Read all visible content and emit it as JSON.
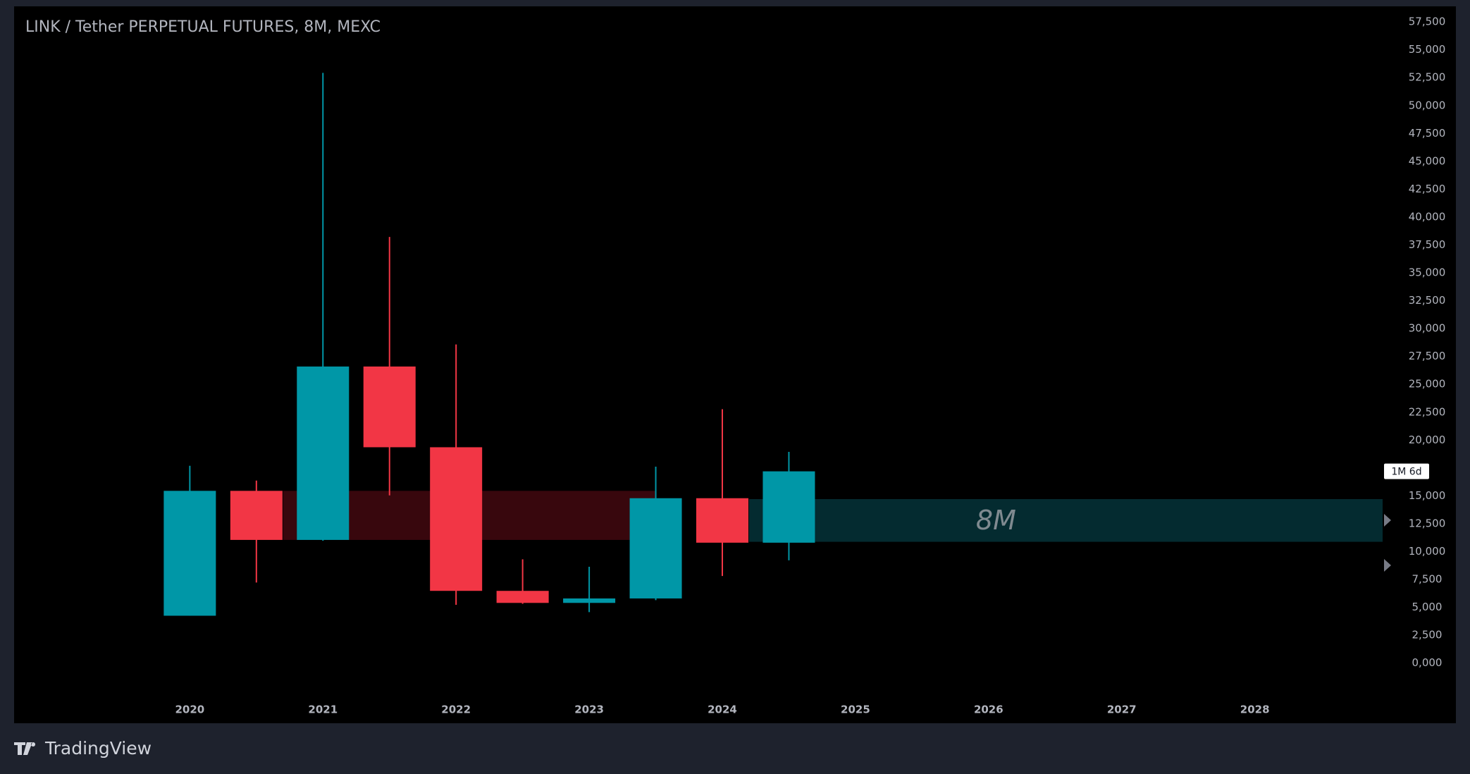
{
  "chart_data": {
    "type": "candlestick",
    "title": "LINK / Tether PERPETUAL FUTURES, 8M, MEXC",
    "brand": "TradingView",
    "countdown_label": "1M 6d",
    "up_color": "#0097a7",
    "down_color": "#f23645",
    "x": [
      2020,
      2020.5,
      2021,
      2021.5,
      2022,
      2022.5,
      2023,
      2023.5,
      2024,
      2024.5
    ],
    "open": [
      4250,
      15450,
      11050,
      26600,
      19360,
      6480,
      5400,
      5800,
      14790,
      10800
    ],
    "high": [
      17700,
      16370,
      52930,
      38220,
      28580,
      9310,
      8640,
      17620,
      22770,
      18950
    ],
    "low": [
      4250,
      7230,
      10970,
      15040,
      5230,
      5320,
      4570,
      5650,
      7810,
      9220
    ],
    "close": [
      15450,
      11050,
      26600,
      19360,
      6480,
      5400,
      5800,
      14790,
      10800,
      17200
    ],
    "zones": [
      {
        "x0": 2020.7,
        "x1": 2023.5,
        "top": 15450,
        "bottom": 11050,
        "color": "#38070d"
      },
      {
        "x0": 2024.2,
        "x1": 2028.96,
        "top": 14710,
        "bottom": 10880,
        "color": "#042b30",
        "label": "8M"
      }
    ],
    "xlim": [
      2018.68,
      2028.96
    ],
    "xticks": [
      2020,
      2021,
      2022,
      2023,
      2024,
      2025,
      2026,
      2027,
      2028
    ],
    "ylim": [
      -2800,
      58900
    ],
    "yticks": [
      {
        "value": 57500,
        "label": "57,500"
      },
      {
        "value": 55000,
        "label": "55,000"
      },
      {
        "value": 52500,
        "label": "52,500"
      },
      {
        "value": 50000,
        "label": "50,000"
      },
      {
        "value": 47500,
        "label": "47,500"
      },
      {
        "value": 45000,
        "label": "45,000"
      },
      {
        "value": 42500,
        "label": "42,500"
      },
      {
        "value": 40000,
        "label": "40,000"
      },
      {
        "value": 37500,
        "label": "37,500"
      },
      {
        "value": 35000,
        "label": "35,000"
      },
      {
        "value": 32500,
        "label": "32,500"
      },
      {
        "value": 30000,
        "label": "30,000"
      },
      {
        "value": 27500,
        "label": "27,500"
      },
      {
        "value": 25000,
        "label": "25,000"
      },
      {
        "value": 22500,
        "label": "22,500"
      },
      {
        "value": 20000,
        "label": "20,000"
      },
      {
        "value": 15000,
        "label": "15,000"
      },
      {
        "value": 12500,
        "label": "12,500"
      },
      {
        "value": 10000,
        "label": "10,000"
      },
      {
        "value": 7500,
        "label": "7,500"
      },
      {
        "value": 5000,
        "label": "5,000"
      },
      {
        "value": 2500,
        "label": "2,500"
      },
      {
        "value": 0,
        "label": "0,000"
      }
    ],
    "countdown_value": 17200
  }
}
